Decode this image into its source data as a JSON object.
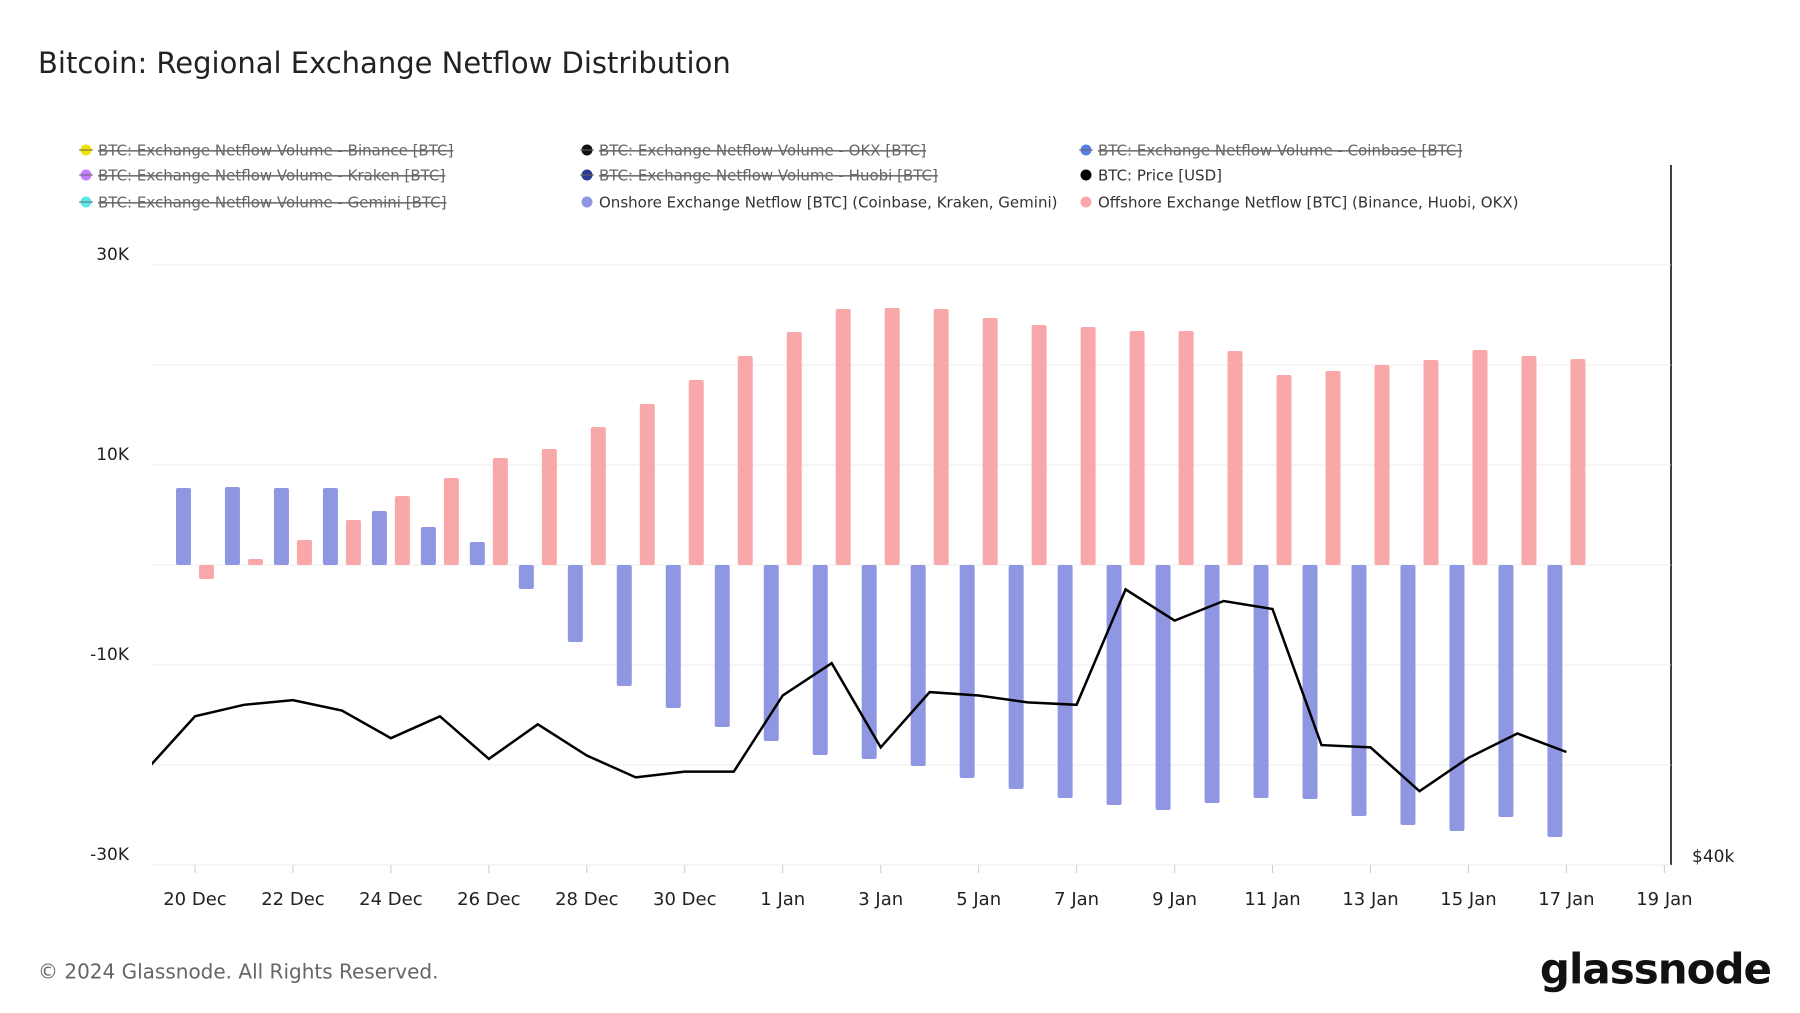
{
  "chart_data": {
    "type": "bar",
    "title": "Bitcoin: Regional Exchange Netflow Distribution",
    "footer": "© 2024 Glassnode. All Rights Reserved.",
    "logo": "glassnode",
    "categories": [
      null,
      "20 Dec",
      null,
      "22 Dec",
      null,
      "24 Dec",
      null,
      "26 Dec",
      null,
      "28 Dec",
      null,
      "30 Dec",
      null,
      "1 Jan",
      null,
      "3 Jan",
      null,
      "5 Jan",
      null,
      "7 Jan",
      null,
      "9 Jan",
      null,
      "11 Jan",
      null,
      "13 Jan",
      null,
      "15 Jan",
      null,
      "17 Jan",
      null,
      "19 Jan"
    ],
    "ylim": [
      -30000,
      40000
    ],
    "yticks": [
      {
        "value": -30000,
        "label": "-30K"
      },
      {
        "value": -10000,
        "label": "-10K"
      },
      {
        "value": 10000,
        "label": "10K"
      },
      {
        "value": 30000,
        "label": "30K"
      }
    ],
    "ygrid": [
      -20000,
      0,
      20000,
      30000,
      10000,
      -10000
    ],
    "y2lim": [
      40000,
      57700
    ],
    "y2ticks": [
      {
        "value": 40000,
        "label": "$40k"
      }
    ],
    "grid": true,
    "series": [
      {
        "name": "BTC: Exchange Netflow Volume - Binance [BTC]",
        "color": "#f2e200",
        "hidden": true
      },
      {
        "name": "BTC: Exchange Netflow Volume - OKX [BTC]",
        "color": "#111111",
        "hidden": true
      },
      {
        "name": "BTC: Exchange Netflow Volume - Coinbase [BTC]",
        "color": "#5b7fe0",
        "hidden": true
      },
      {
        "name": "BTC: Exchange Netflow Volume - Kraken [BTC]",
        "color": "#c77dff",
        "hidden": true
      },
      {
        "name": "BTC: Exchange Netflow Volume - Huobi [BTC]",
        "color": "#2b3990",
        "hidden": true
      },
      {
        "name": "BTC: Price [USD]",
        "color": "#000000",
        "type": "line",
        "axis": "y2",
        "values": [
          42391,
          43761,
          44052,
          44169,
          43907,
          43207,
          43761,
          42682,
          43557,
          42770,
          42216,
          42362,
          42362,
          44286,
          45102,
          42974,
          44373,
          44286,
          44111,
          44052,
          46968,
          46181,
          46676,
          46472,
          43032,
          42974,
          41866,
          42711,
          43324,
          42857,
          null,
          null
        ]
      },
      {
        "name": "BTC: Exchange Netflow Volume - Gemini [BTC]",
        "color": "#5ee7e7",
        "hidden": true
      },
      {
        "name": "Onshore Exchange Netflow [BTC] (Coinbase, Kraken, Gemini)",
        "color": "#8f97e3",
        "type": "bar",
        "offset": -1,
        "values": [
          null,
          7700,
          7800,
          7700,
          7700,
          5400,
          3800,
          2300,
          -2400,
          -7700,
          -12100,
          -14300,
          -16200,
          -17600,
          -19000,
          -19400,
          -20100,
          -21300,
          -22400,
          -23300,
          -24000,
          -24500,
          -23800,
          -23300,
          -23400,
          -25100,
          -26000,
          -26600,
          -25200,
          -27200,
          null,
          null
        ]
      },
      {
        "name": "Offshore Exchange Netflow [BTC] (Binance, Huobi, OKX)",
        "color": "#f9a8aa",
        "type": "bar",
        "offset": 1,
        "values": [
          null,
          -1400,
          600,
          2500,
          4500,
          6900,
          8700,
          10700,
          11600,
          13800,
          16100,
          18500,
          20900,
          23300,
          25600,
          25700,
          25600,
          24700,
          24000,
          23800,
          23400,
          23400,
          21400,
          19000,
          19400,
          20000,
          20500,
          21500,
          20900,
          20600,
          null,
          null
        ]
      }
    ]
  }
}
